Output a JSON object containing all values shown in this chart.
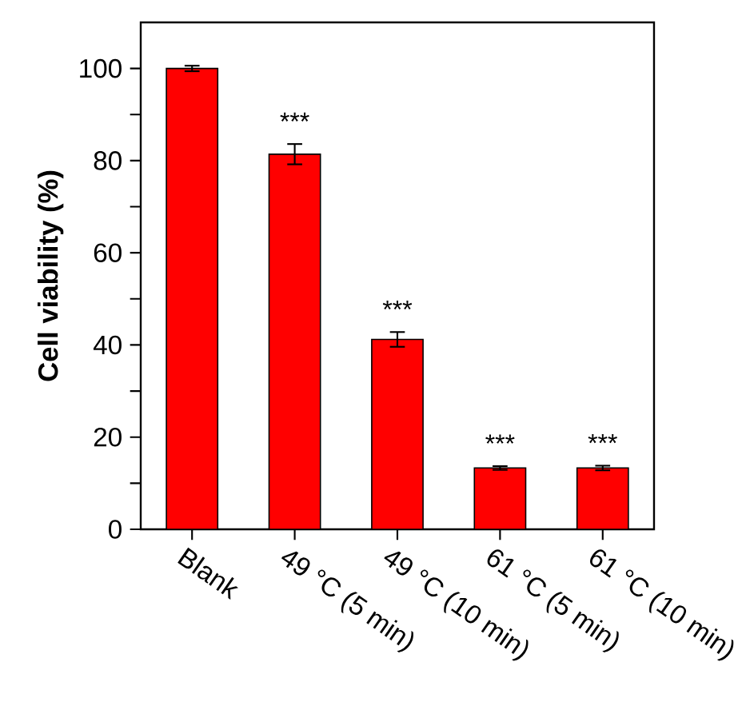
{
  "chart_data": {
    "type": "bar",
    "ylabel": "Cell viability (%)",
    "categories": [
      "Blank",
      "49 °C (5 min)",
      "49 °C (10 min)",
      "61 °C (5 min)",
      "61 °C (10 min)"
    ],
    "values": [
      100,
      81.4,
      41.2,
      13.3,
      13.3
    ],
    "errors": [
      0.6,
      2.2,
      1.6,
      0.4,
      0.5
    ],
    "color": "#ff0000",
    "ylim": [
      0,
      110
    ],
    "yticks": [
      0,
      {
        "value": 10,
        "label": null
      },
      20,
      {
        "value": 30,
        "label": null
      },
      40,
      {
        "value": 50,
        "label": null
      },
      60,
      {
        "value": 70,
        "label": null
      },
      80,
      {
        "value": 90,
        "label": null
      },
      100
    ],
    "annotations": [
      "***",
      "***",
      "***",
      "***"
    ]
  }
}
